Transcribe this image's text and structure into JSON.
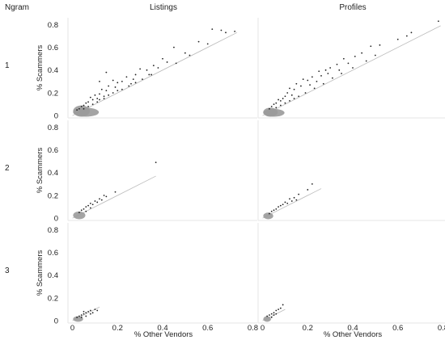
{
  "chart_data": {
    "type": "scatter",
    "facet_row_title": "Ngram",
    "columns": [
      "Listings",
      "Profiles"
    ],
    "rows": [
      "1",
      "2",
      "3"
    ],
    "xlabel": "% Other Vendors",
    "ylabel": "% Scammers",
    "xlim": [
      -0.02,
      0.82
    ],
    "ylim": [
      -0.02,
      0.86
    ],
    "x_ticks": [
      "0",
      "0.2",
      "0.4",
      "0.6",
      "0.8"
    ],
    "y_ticks": [
      "0",
      "0.2",
      "0.4",
      "0.6",
      "0.8"
    ],
    "reference_line": "y = x",
    "grid": false,
    "colors": {
      "points": "#222222",
      "dense_points": "#9a9a9a",
      "reference_line": "#bbbbbb",
      "panel_border": "#e6e6e6"
    },
    "panels": [
      {
        "column": "Listings",
        "row": "1",
        "line_x_max": 0.73,
        "points": [
          [
            0.62,
            0.76
          ],
          [
            0.66,
            0.75
          ],
          [
            0.68,
            0.73
          ],
          [
            0.72,
            0.74
          ],
          [
            0.56,
            0.65
          ],
          [
            0.6,
            0.63
          ],
          [
            0.45,
            0.6
          ],
          [
            0.5,
            0.55
          ],
          [
            0.52,
            0.53
          ],
          [
            0.4,
            0.5
          ],
          [
            0.42,
            0.47
          ],
          [
            0.46,
            0.46
          ],
          [
            0.36,
            0.44
          ],
          [
            0.38,
            0.42
          ],
          [
            0.33,
            0.4
          ],
          [
            0.3,
            0.41
          ],
          [
            0.34,
            0.36
          ],
          [
            0.28,
            0.36
          ],
          [
            0.27,
            0.32
          ],
          [
            0.24,
            0.34
          ],
          [
            0.22,
            0.3
          ],
          [
            0.2,
            0.29
          ],
          [
            0.18,
            0.31
          ],
          [
            0.26,
            0.28
          ],
          [
            0.19,
            0.25
          ],
          [
            0.16,
            0.26
          ],
          [
            0.15,
            0.22
          ],
          [
            0.13,
            0.23
          ],
          [
            0.12,
            0.19
          ],
          [
            0.14,
            0.17
          ],
          [
            0.1,
            0.18
          ],
          [
            0.11,
            0.15
          ],
          [
            0.09,
            0.14
          ],
          [
            0.08,
            0.16
          ],
          [
            0.07,
            0.12
          ],
          [
            0.06,
            0.11
          ],
          [
            0.05,
            0.09
          ],
          [
            0.04,
            0.08
          ],
          [
            0.03,
            0.06
          ],
          [
            0.02,
            0.05
          ],
          [
            0.05,
            0.06
          ],
          [
            0.07,
            0.08
          ],
          [
            0.09,
            0.1
          ],
          [
            0.11,
            0.12
          ],
          [
            0.12,
            0.14
          ],
          [
            0.14,
            0.15
          ],
          [
            0.16,
            0.18
          ],
          [
            0.18,
            0.2
          ],
          [
            0.2,
            0.22
          ],
          [
            0.22,
            0.23
          ],
          [
            0.25,
            0.26
          ],
          [
            0.28,
            0.29
          ],
          [
            0.31,
            0.32
          ],
          [
            0.35,
            0.36
          ],
          [
            0.15,
            0.38
          ],
          [
            0.12,
            0.3
          ]
        ],
        "dense": [
          [
            0.0,
            0.0,
            0.06,
            0.07
          ],
          [
            0.0,
            0.0,
            0.1,
            0.05
          ]
        ]
      },
      {
        "column": "Profiles",
        "row": "1",
        "line_x_max": 0.79,
        "points": [
          [
            0.78,
            0.83
          ],
          [
            0.66,
            0.73
          ],
          [
            0.64,
            0.7
          ],
          [
            0.6,
            0.67
          ],
          [
            0.52,
            0.62
          ],
          [
            0.48,
            0.61
          ],
          [
            0.44,
            0.55
          ],
          [
            0.41,
            0.52
          ],
          [
            0.36,
            0.5
          ],
          [
            0.38,
            0.46
          ],
          [
            0.33,
            0.45
          ],
          [
            0.3,
            0.42
          ],
          [
            0.28,
            0.4
          ],
          [
            0.25,
            0.39
          ],
          [
            0.26,
            0.35
          ],
          [
            0.22,
            0.34
          ],
          [
            0.2,
            0.31
          ],
          [
            0.18,
            0.32
          ],
          [
            0.21,
            0.27
          ],
          [
            0.17,
            0.26
          ],
          [
            0.15,
            0.28
          ],
          [
            0.14,
            0.23
          ],
          [
            0.12,
            0.24
          ],
          [
            0.11,
            0.2
          ],
          [
            0.13,
            0.18
          ],
          [
            0.1,
            0.17
          ],
          [
            0.09,
            0.15
          ],
          [
            0.08,
            0.13
          ],
          [
            0.07,
            0.14
          ],
          [
            0.06,
            0.11
          ],
          [
            0.05,
            0.1
          ],
          [
            0.04,
            0.08
          ],
          [
            0.03,
            0.06
          ],
          [
            0.06,
            0.07
          ],
          [
            0.08,
            0.09
          ],
          [
            0.1,
            0.11
          ],
          [
            0.12,
            0.13
          ],
          [
            0.14,
            0.15
          ],
          [
            0.16,
            0.17
          ],
          [
            0.19,
            0.2
          ],
          [
            0.23,
            0.24
          ],
          [
            0.27,
            0.28
          ],
          [
            0.31,
            0.33
          ],
          [
            0.35,
            0.37
          ],
          [
            0.4,
            0.42
          ],
          [
            0.46,
            0.48
          ],
          [
            0.5,
            0.53
          ],
          [
            0.24,
            0.3
          ],
          [
            0.29,
            0.37
          ],
          [
            0.34,
            0.4
          ]
        ],
        "dense": [
          [
            0.0,
            0.0,
            0.05,
            0.05
          ],
          [
            0.0,
            0.0,
            0.08,
            0.04
          ]
        ]
      },
      {
        "column": "Listings",
        "row": "2",
        "line_x_max": 0.37,
        "points": [
          [
            0.37,
            0.49
          ],
          [
            0.19,
            0.23
          ],
          [
            0.14,
            0.2
          ],
          [
            0.12,
            0.17
          ],
          [
            0.1,
            0.15
          ],
          [
            0.08,
            0.13
          ],
          [
            0.07,
            0.11
          ],
          [
            0.06,
            0.1
          ],
          [
            0.05,
            0.08
          ],
          [
            0.04,
            0.07
          ],
          [
            0.09,
            0.12
          ],
          [
            0.11,
            0.14
          ],
          [
            0.13,
            0.16
          ],
          [
            0.15,
            0.19
          ],
          [
            0.03,
            0.05
          ],
          [
            0.06,
            0.06
          ],
          [
            0.08,
            0.09
          ]
        ],
        "dense": [
          [
            0.0,
            0.0,
            0.04,
            0.04
          ]
        ]
      },
      {
        "column": "Profiles",
        "row": "2",
        "line_x_max": 0.26,
        "points": [
          [
            0.22,
            0.3
          ],
          [
            0.2,
            0.25
          ],
          [
            0.16,
            0.21
          ],
          [
            0.14,
            0.18
          ],
          [
            0.12,
            0.17
          ],
          [
            0.1,
            0.14
          ],
          [
            0.09,
            0.12
          ],
          [
            0.08,
            0.11
          ],
          [
            0.07,
            0.1
          ],
          [
            0.06,
            0.08
          ],
          [
            0.05,
            0.07
          ],
          [
            0.04,
            0.06
          ],
          [
            0.11,
            0.13
          ],
          [
            0.13,
            0.15
          ],
          [
            0.15,
            0.16
          ],
          [
            0.03,
            0.04
          ]
        ],
        "dense": [
          [
            0.0,
            0.0,
            0.03,
            0.03
          ]
        ]
      },
      {
        "column": "Listings",
        "row": "3",
        "line_x_max": 0.12,
        "points": [
          [
            0.1,
            0.1
          ],
          [
            0.08,
            0.09
          ],
          [
            0.07,
            0.08
          ],
          [
            0.06,
            0.07
          ],
          [
            0.05,
            0.06
          ],
          [
            0.04,
            0.05
          ],
          [
            0.03,
            0.04
          ],
          [
            0.02,
            0.03
          ],
          [
            0.09,
            0.07
          ],
          [
            0.06,
            0.04
          ],
          [
            0.04,
            0.03
          ],
          [
            0.11,
            0.09
          ],
          [
            0.05,
            0.08
          ],
          [
            0.08,
            0.06
          ]
        ],
        "dense": [
          [
            0.0,
            0.0,
            0.03,
            0.02
          ]
        ]
      },
      {
        "column": "Profiles",
        "row": "3",
        "line_x_max": 0.1,
        "points": [
          [
            0.09,
            0.14
          ],
          [
            0.08,
            0.11
          ],
          [
            0.07,
            0.1
          ],
          [
            0.06,
            0.09
          ],
          [
            0.05,
            0.07
          ],
          [
            0.04,
            0.06
          ],
          [
            0.03,
            0.05
          ],
          [
            0.02,
            0.04
          ],
          [
            0.06,
            0.06
          ],
          [
            0.04,
            0.03
          ],
          [
            0.05,
            0.05
          ]
        ],
        "dense": [
          [
            0.0,
            0.0,
            0.02,
            0.02
          ]
        ]
      }
    ]
  }
}
